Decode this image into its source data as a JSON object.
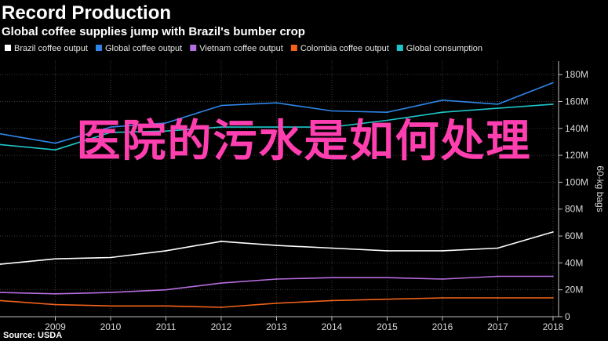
{
  "header": {
    "title": "Record Production",
    "subtitle": "Global coffee supplies jump with Brazil's bumber crop"
  },
  "overlay_text": "医院的污水是如何处理",
  "source": "Source: USDA",
  "colors": {
    "Brazil coffee output": "#ffffff",
    "Global coffee output": "#2f86e8",
    "Vietnam coffee output": "#b66ddf",
    "Colombia coffee output": "#f2621b",
    "Global consumption": "#1fc6c9"
  },
  "chart_data": {
    "type": "line",
    "title": "Record Production",
    "subtitle": "Global coffee supplies jump with Brazil's bumber crop",
    "xlabel": "",
    "ylabel": "60-kg bags",
    "y_axis_position": "right",
    "x_ticks": [
      "2009",
      "2010",
      "2011",
      "2012",
      "2013",
      "2014",
      "2015",
      "2016",
      "2017",
      "2018"
    ],
    "y_ticks": [
      "0",
      "20M",
      "40M",
      "60M",
      "80M",
      "100M",
      "120M",
      "140M",
      "160M",
      "180M"
    ],
    "ylim": [
      0,
      190
    ],
    "xlim": [
      2008,
      2018.1
    ],
    "grid": true,
    "legend_position": "top",
    "x": [
      2008,
      2009,
      2010,
      2011,
      2012,
      2013,
      2014,
      2015,
      2016,
      2017,
      2018
    ],
    "series": [
      {
        "name": "Brazil coffee output",
        "values": [
          39,
          43,
          44,
          49,
          56,
          53,
          51,
          49,
          49,
          51,
          63
        ]
      },
      {
        "name": "Global coffee output",
        "values": [
          136,
          129,
          141,
          144,
          157,
          159,
          153,
          152,
          161,
          158,
          174
        ]
      },
      {
        "name": "Vietnam coffee output",
        "values": [
          18,
          17,
          18,
          20,
          25,
          28,
          29,
          29,
          28,
          30,
          30
        ]
      },
      {
        "name": "Colombia coffee output",
        "values": [
          12,
          9,
          8,
          8,
          7,
          10,
          12,
          13,
          14,
          14,
          14
        ]
      },
      {
        "name": "Global consumption",
        "values": [
          128,
          124,
          137,
          138,
          141,
          141,
          141,
          146,
          152,
          155,
          158
        ]
      }
    ]
  }
}
